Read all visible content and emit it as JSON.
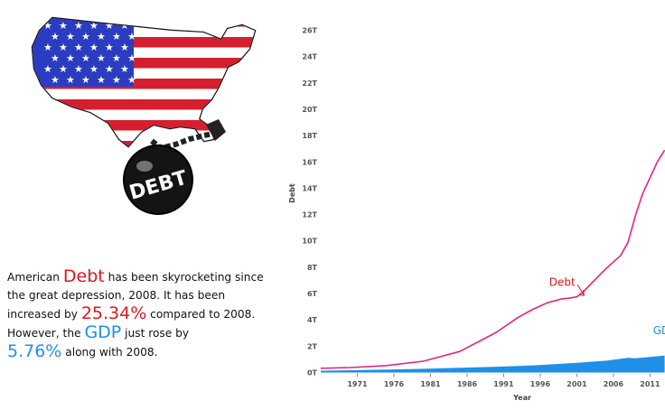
{
  "logo": {
    "text": "DEBT"
  },
  "story": {
    "p1": "American ",
    "w_debt": "Debt",
    "p2": " has been skyrocketing since the great depression, 2008. It has been increased by ",
    "pct_debt": "25.34%",
    "p3": " compared to 2008. However, the ",
    "w_gdp": "GDP",
    "p4": " just rose by ",
    "pct_gdp": "5.76%",
    "p5": " along with 2008.",
    "colors": {
      "debt": "#e0161e",
      "gdp": "#1f8fe8"
    }
  },
  "chart_data": {
    "type": "area",
    "ylabel": "Debt",
    "xlabel": "Year",
    "ylim": [
      0,
      26
    ],
    "y_unit": "T",
    "y_tick_labels": [
      "0T",
      "2T",
      "4T",
      "6T",
      "8T",
      "10T",
      "12T",
      "14T",
      "16T",
      "18T",
      "20T",
      "22T",
      "24T",
      "26T"
    ],
    "x_tick_labels": [
      "1971",
      "1976",
      "1981",
      "1986",
      "1991",
      "1996",
      "2001",
      "2006",
      "2011"
    ],
    "grid": false,
    "series": [
      {
        "name": "Debt",
        "style": "line",
        "color": "#e8227e",
        "x": [
          1966,
          1970,
          1975,
          1980,
          1985,
          1990,
          1993,
          1995,
          1997,
          1999,
          2000,
          2001,
          2002,
          2003,
          2005,
          2007,
          2008,
          2009,
          2010,
          2011,
          2012,
          2013
        ],
        "y": [
          0.32,
          0.38,
          0.53,
          0.86,
          1.6,
          3.05,
          4.2,
          4.8,
          5.3,
          5.6,
          5.65,
          5.75,
          6.2,
          6.78,
          7.9,
          8.9,
          9.9,
          11.9,
          13.6,
          14.8,
          16.0,
          16.9
        ]
      },
      {
        "name": "GDP",
        "style": "area",
        "color": "#1f8fe8",
        "x": [
          1966,
          1970,
          1975,
          1980,
          1985,
          1990,
          1995,
          2000,
          2005,
          2008,
          2009,
          2011,
          2013
        ],
        "y": [
          0.14,
          0.17,
          0.22,
          0.28,
          0.36,
          0.44,
          0.54,
          0.7,
          0.9,
          1.12,
          1.08,
          1.18,
          1.28
        ]
      }
    ],
    "annotations": [
      {
        "text": "Debt",
        "color": "#e0161e",
        "x": 1999,
        "y": 6.6,
        "arrow_to": [
          2002,
          5.85
        ]
      },
      {
        "text": "GDP",
        "color": "#1f8fe8",
        "x": 2013,
        "y": 2.9
      }
    ]
  }
}
